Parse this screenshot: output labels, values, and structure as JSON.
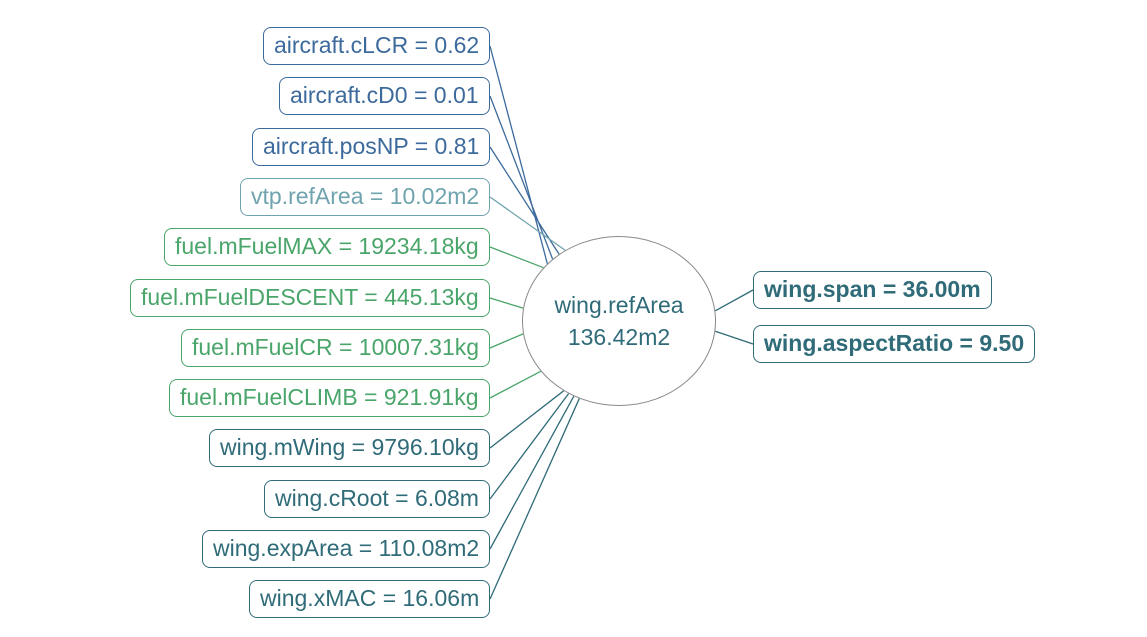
{
  "center": {
    "name": "wing.refArea",
    "value": "136.42m2",
    "color": "#2f6b78"
  },
  "inputs": [
    {
      "label": "aircraft.cLCR = 0.62",
      "color": "#3c6a9c"
    },
    {
      "label": "aircraft.cD0 = 0.01",
      "color": "#3c6a9c"
    },
    {
      "label": "aircraft.posNP = 0.81",
      "color": "#3c6a9c"
    },
    {
      "label": "vtp.refArea = 10.02m2",
      "color": "#6fa3ae"
    },
    {
      "label": "fuel.mFuelMAX = 19234.18kg",
      "color": "#4aa56a"
    },
    {
      "label": "fuel.mFuelDESCENT = 445.13kg",
      "color": "#4aa56a"
    },
    {
      "label": "fuel.mFuelCR = 10007.31kg",
      "color": "#4aa56a"
    },
    {
      "label": "fuel.mFuelCLIMB = 921.91kg",
      "color": "#4aa56a"
    },
    {
      "label": "wing.mWing = 9796.10kg",
      "color": "#2f6b78"
    },
    {
      "label": "wing.cRoot = 6.08m",
      "color": "#2f6b78"
    },
    {
      "label": "wing.expArea = 110.08m2",
      "color": "#2f6b78"
    },
    {
      "label": "wing.xMAC = 16.06m",
      "color": "#2f6b78"
    }
  ],
  "outputs": [
    {
      "label": "wing.span = 36.00m",
      "color": "#2f6b78"
    },
    {
      "label": "wing.aspectRatio = 9.50",
      "color": "#2f6b78"
    }
  ]
}
